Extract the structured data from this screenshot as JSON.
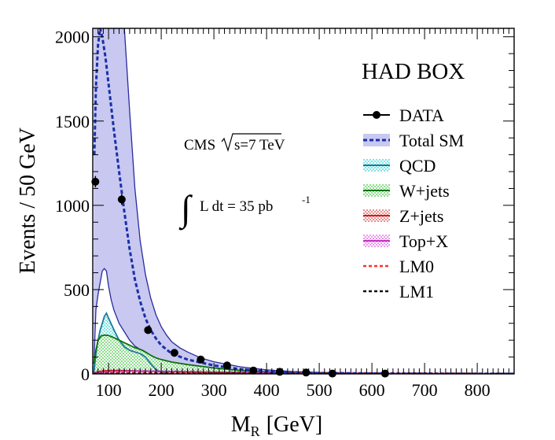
{
  "chart_data": {
    "type": "line",
    "title": "",
    "xlabel_main": "M",
    "xlabel_sub": "R",
    "xlabel_unit": "[GeV]",
    "ylabel": "Events / 50 GeV",
    "xlim": [
      70,
      870
    ],
    "ylim": [
      0,
      2050
    ],
    "xticks": [
      100,
      200,
      300,
      400,
      500,
      600,
      700,
      800
    ],
    "yticks": [
      0,
      500,
      1000,
      1500,
      2000
    ],
    "box_label": "HAD BOX",
    "cms_label": "CMS",
    "sqrt_label": "s=7 TeV",
    "lumi_label": "L dt = 35 pb",
    "lumi_exp": "-1",
    "colors": {
      "band_fill": "#c8c8f0",
      "band_line": "#2a2a9e",
      "total_sm": "#1a2fa8",
      "qcd_fill": "#a8f0f0",
      "qcd_line": "#1a7a9a",
      "wjets_fill": "#a8e8a8",
      "wjets_line": "#107010",
      "zjets_fill": "#f0a0a0",
      "zjets_line": "#c82020",
      "top_fill": "#f0a8f0",
      "top_line": "#c030c0",
      "lm0": "#ff3030",
      "lm1": "#101010",
      "data": "#000000"
    },
    "legend": [
      {
        "label": "DATA",
        "style": "data"
      },
      {
        "label": "Total SM",
        "style": "band"
      },
      {
        "label": "QCD",
        "style": "qcd"
      },
      {
        "label": "W+jets",
        "style": "wjets"
      },
      {
        "label": "Z+jets",
        "style": "zjets"
      },
      {
        "label": "Top+X",
        "style": "top"
      },
      {
        "label": "LM0",
        "style": "lm0"
      },
      {
        "label": "LM1",
        "style": "lm1"
      }
    ],
    "data_points": {
      "x": [
        75,
        125,
        175,
        225,
        275,
        325,
        375,
        425,
        475,
        525,
        625
      ],
      "y": [
        1140,
        1035,
        260,
        125,
        85,
        50,
        20,
        12,
        8,
        2,
        2
      ]
    },
    "series": [
      {
        "name": "Total SM",
        "style": "total_sm",
        "x": [
          73,
          76,
          80,
          84,
          88,
          94,
          100,
          110,
          120,
          130,
          140,
          150,
          160,
          170,
          180,
          190,
          200,
          220,
          250,
          300,
          350,
          400,
          450,
          500,
          600,
          700,
          800,
          870
        ],
        "y": [
          1300,
          1700,
          1950,
          2050,
          2000,
          1880,
          1720,
          1450,
          1200,
          960,
          740,
          560,
          430,
          330,
          260,
          210,
          170,
          120,
          85,
          50,
          28,
          15,
          9,
          5,
          2,
          1,
          0.5,
          0.3
        ]
      },
      {
        "name": "Band upper",
        "style": "band_upper",
        "x": [
          72,
          74,
          76,
          80,
          85,
          90,
          100,
          110,
          120,
          130,
          140,
          150,
          160,
          170,
          180,
          190,
          200,
          210,
          220,
          235,
          250,
          275,
          300,
          350,
          400,
          450,
          500,
          600,
          700,
          800,
          870
        ],
        "y": [
          2050,
          2050,
          2050,
          2050,
          2050,
          2050,
          2050,
          2050,
          2050,
          2050,
          1560,
          1100,
          790,
          590,
          450,
          350,
          280,
          230,
          190,
          155,
          130,
          95,
          72,
          42,
          24,
          14,
          8,
          3,
          1.5,
          0.8,
          0.5
        ]
      },
      {
        "name": "Band lower",
        "style": "band_lower",
        "x": [
          72,
          74,
          76,
          80,
          85,
          88,
          92,
          96,
          100,
          105,
          110,
          120,
          130,
          140,
          150,
          160,
          165,
          170,
          180,
          200,
          250,
          300,
          400,
          500,
          600,
          870
        ],
        "y": [
          0,
          220,
          380,
          470,
          560,
          610,
          625,
          610,
          520,
          440,
          380,
          300,
          250,
          200,
          165,
          145,
          140,
          130,
          110,
          80,
          40,
          18,
          6,
          2,
          1,
          0
        ]
      },
      {
        "name": "QCD",
        "style": "qcd",
        "x": [
          72,
          76,
          80,
          84,
          88,
          92,
          96,
          100,
          106,
          112,
          120,
          130,
          140,
          150,
          160,
          170,
          180,
          190,
          200,
          220
        ],
        "y": [
          0,
          120,
          200,
          260,
          300,
          340,
          360,
          330,
          290,
          250,
          200,
          160,
          140,
          130,
          120,
          100,
          60,
          25,
          8,
          0
        ]
      },
      {
        "name": "W+jets",
        "style": "wjets",
        "x": [
          72,
          76,
          80,
          86,
          92,
          100,
          110,
          120,
          130,
          140,
          150,
          160,
          170,
          180,
          190,
          200,
          220,
          250,
          300,
          350,
          400,
          450,
          500,
          600,
          700,
          870
        ],
        "y": [
          60,
          140,
          200,
          225,
          230,
          228,
          215,
          200,
          185,
          170,
          155,
          145,
          130,
          110,
          95,
          85,
          70,
          55,
          35,
          20,
          12,
          7,
          4,
          2,
          1,
          0.5
        ]
      },
      {
        "name": "Z+jets",
        "style": "zjets",
        "x": [
          72,
          80,
          90,
          100,
          120,
          150,
          200,
          250,
          300,
          400,
          500,
          870
        ],
        "y": [
          5,
          12,
          18,
          20,
          20,
          18,
          14,
          10,
          7,
          4,
          2,
          0.5
        ]
      },
      {
        "name": "Top+X",
        "style": "top",
        "x": [
          72,
          80,
          90,
          100,
          120,
          150,
          200,
          250,
          300,
          400,
          500,
          870
        ],
        "y": [
          3,
          8,
          12,
          14,
          16,
          17,
          16,
          14,
          11,
          7,
          4,
          1
        ]
      },
      {
        "name": "LM0",
        "style": "lm0",
        "x": [
          72,
          100,
          150,
          200,
          300,
          400,
          500,
          600,
          700,
          800,
          870
        ],
        "y": [
          2,
          4,
          6,
          7,
          8,
          7,
          6,
          5,
          4,
          3,
          2
        ]
      },
      {
        "name": "LM1",
        "style": "lm1",
        "x": [
          72,
          150,
          300,
          450,
          600,
          870
        ],
        "y": [
          1,
          2,
          3,
          3,
          2,
          1
        ]
      }
    ]
  }
}
